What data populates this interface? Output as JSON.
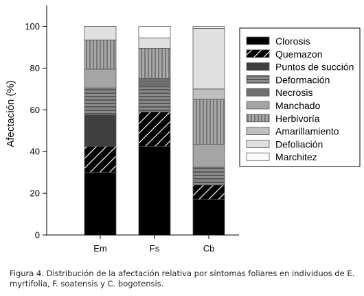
{
  "caption": "Figura 4. Distribución de la afectación relativa por síntomas foliares en individuos de E. myrtifolia, F. soatensis y C. bogotensis.",
  "chart_data": {
    "type": "bar",
    "stacked": true,
    "categories": [
      "Em",
      "Fs",
      "Cb"
    ],
    "ylabel": "Afectación (%)",
    "xlabel": "",
    "ylim": [
      0,
      110
    ],
    "yticks": [
      0,
      20,
      40,
      60,
      80,
      100
    ],
    "grid": false,
    "legend_position": "right",
    "series": [
      {
        "name": "Clorosis",
        "values": [
          30,
          42.5,
          17
        ],
        "fill": "#000000",
        "pattern": "solid"
      },
      {
        "name": "Quemazon",
        "values": [
          12.5,
          16.5,
          7
        ],
        "fill": "#000000",
        "pattern": "diag-white"
      },
      {
        "name": "Puntos de succión",
        "values": [
          15,
          0,
          0
        ],
        "fill": "#3f3f3f",
        "pattern": "solid"
      },
      {
        "name": "Deformación",
        "values": [
          13,
          12,
          8.5
        ],
        "fill": "#777777",
        "pattern": "hlines"
      },
      {
        "name": "Necrosis",
        "values": [
          0,
          4,
          0
        ],
        "fill": "#6f6f6f",
        "pattern": "solid"
      },
      {
        "name": "Manchado",
        "values": [
          9,
          0,
          11
        ],
        "fill": "#a5a5a5",
        "pattern": "solid"
      },
      {
        "name": "Herbivoría",
        "values": [
          14,
          14.5,
          21.5
        ],
        "fill": "#8f8f8f",
        "pattern": "vlines"
      },
      {
        "name": "Amarillamiento",
        "values": [
          0,
          0,
          5
        ],
        "fill": "#bfbfbf",
        "pattern": "solid"
      },
      {
        "name": "Defoliación",
        "values": [
          6.5,
          5,
          29
        ],
        "fill": "#e0e0e0",
        "pattern": "solid"
      },
      {
        "name": "Marchitez",
        "values": [
          0,
          5.5,
          1
        ],
        "fill": "#ffffff",
        "pattern": "solid"
      }
    ]
  }
}
